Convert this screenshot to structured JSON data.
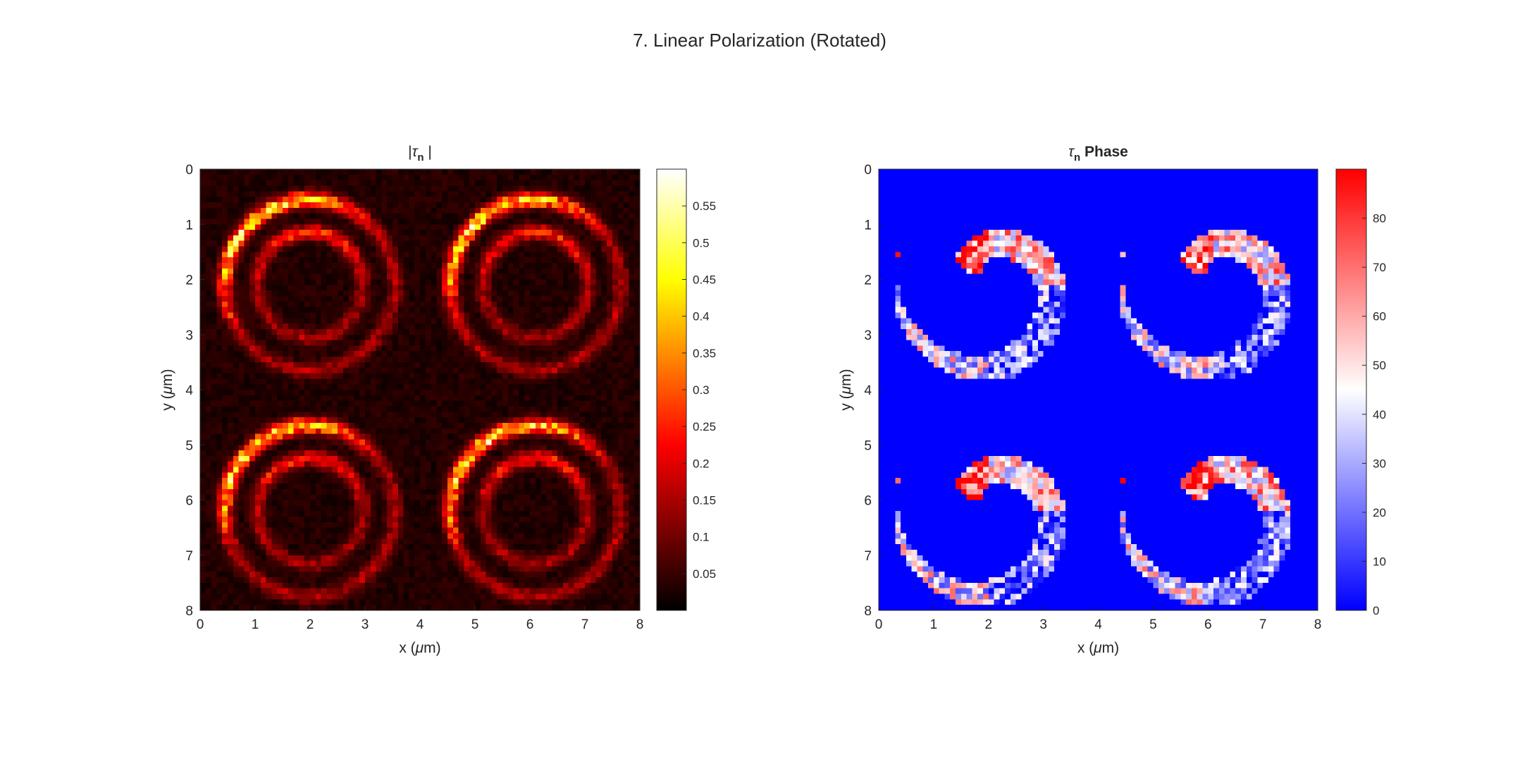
{
  "figure": {
    "title": "7. Linear Polarization (Rotated)"
  },
  "chart_data": [
    {
      "type": "heatmap",
      "panel": "left",
      "title_parts": {
        "pre": "|",
        "symbol": "τ",
        "sub": "n",
        "post": " |"
      },
      "xlabel": {
        "text": "x (",
        "mu": "μ",
        "unit": "m)"
      },
      "ylabel": {
        "text": "y (",
        "mu": "μ",
        "unit": "m)"
      },
      "xlim": [
        0,
        8
      ],
      "ylim": [
        0,
        8
      ],
      "y_reversed": true,
      "xticks": [
        0,
        1,
        2,
        3,
        4,
        5,
        6,
        7,
        8
      ],
      "yticks": [
        0,
        1,
        2,
        3,
        4,
        5,
        6,
        7,
        8
      ],
      "colormap": "hot",
      "clim": [
        0,
        0.6
      ],
      "colorbar_ticks": [
        0.05,
        0.1,
        0.15,
        0.2,
        0.25,
        0.3,
        0.35,
        0.4,
        0.45,
        0.5,
        0.55
      ],
      "colorbar_tick_labels": [
        "0.05",
        "0.1",
        "0.15",
        "0.2",
        "0.25",
        "0.3",
        "0.35",
        "0.4",
        "0.45",
        "0.5",
        "0.55"
      ],
      "pattern": {
        "grid_size": 80,
        "features": [
          {
            "shape": "ring",
            "center": [
              2.0,
              2.1
            ],
            "radius": 1.55,
            "peak": 0.55
          },
          {
            "shape": "ring",
            "center": [
              6.1,
              2.1
            ],
            "radius": 1.55,
            "peak": 0.55
          },
          {
            "shape": "ring",
            "center": [
              2.0,
              6.2
            ],
            "radius": 1.55,
            "peak": 0.55
          },
          {
            "shape": "ring",
            "center": [
              6.1,
              6.2
            ],
            "radius": 1.55,
            "peak": 0.55
          }
        ],
        "background_level": 0.03
      }
    },
    {
      "type": "heatmap",
      "panel": "right",
      "title_parts": {
        "pre": "",
        "symbol": "τ",
        "sub": "n",
        "post": " Phase"
      },
      "xlabel": {
        "text": "x (",
        "mu": "μ",
        "unit": "m)"
      },
      "ylabel": {
        "text": "y (",
        "mu": "μ",
        "unit": "m)"
      },
      "xlim": [
        0,
        8
      ],
      "ylim": [
        0,
        8
      ],
      "y_reversed": true,
      "xticks": [
        0,
        1,
        2,
        3,
        4,
        5,
        6,
        7,
        8
      ],
      "yticks": [
        0,
        1,
        2,
        3,
        4,
        5,
        6,
        7,
        8
      ],
      "colormap": "blue-white-red",
      "clim": [
        0,
        90
      ],
      "colorbar_ticks": [
        0,
        10,
        20,
        30,
        40,
        50,
        60,
        70,
        80
      ],
      "colorbar_tick_labels": [
        "0",
        "10",
        "20",
        "30",
        "40",
        "50",
        "60",
        "70",
        "80"
      ],
      "pattern": {
        "grid_size": 80,
        "features": [
          {
            "shape": "spiral",
            "center": [
              2.0,
              2.1
            ]
          },
          {
            "shape": "spiral",
            "center": [
              6.1,
              2.1
            ]
          },
          {
            "shape": "spiral",
            "center": [
              2.0,
              6.2
            ]
          },
          {
            "shape": "spiral",
            "center": [
              6.1,
              6.2
            ]
          }
        ],
        "background_value": 0
      }
    }
  ],
  "colors": {
    "phase_low": "#0000ff",
    "phase_mid": "#ffffff",
    "phase_high": "#ff0000",
    "axis": "#262626"
  }
}
